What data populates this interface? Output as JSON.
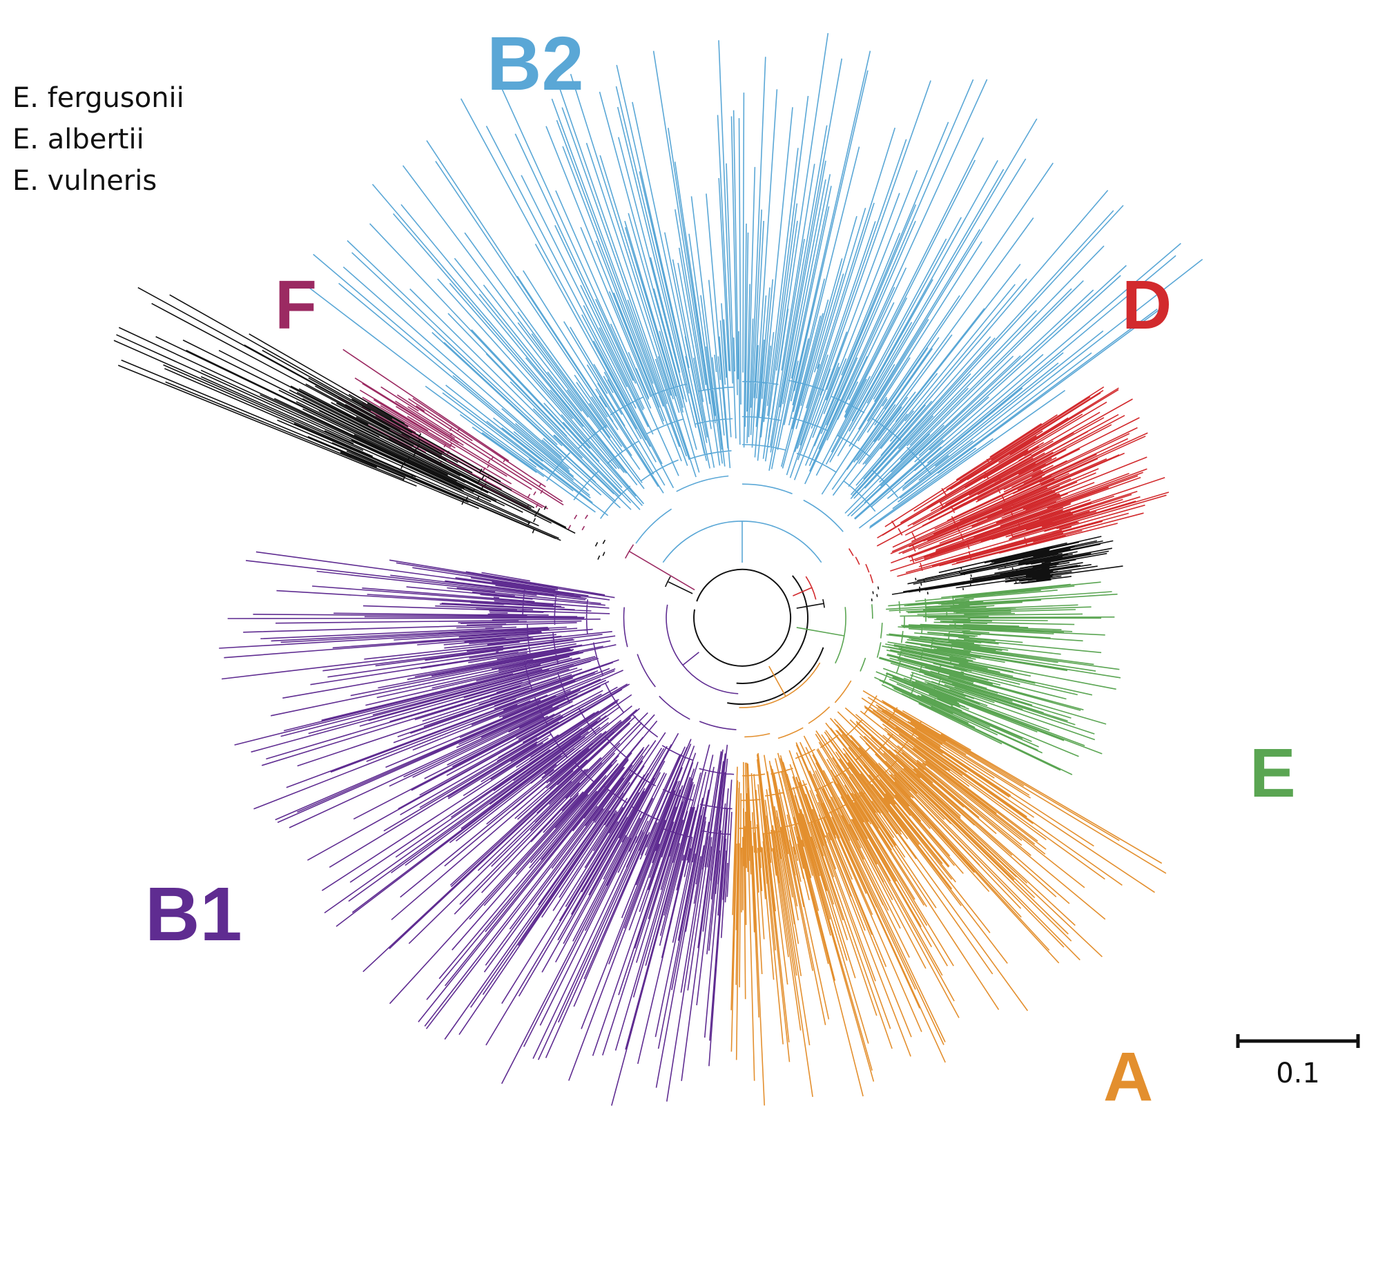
{
  "clades": [
    {
      "id": "B2",
      "label": "B2",
      "color": "#5aa7d6"
    },
    {
      "id": "F",
      "label": "F",
      "color": "#9b2a62"
    },
    {
      "id": "D",
      "label": "D",
      "color": "#d22a2d"
    },
    {
      "id": "E",
      "label": "E",
      "color": "#5aa552"
    },
    {
      "id": "A",
      "label": "A",
      "color": "#e38f2e"
    },
    {
      "id": "B1",
      "label": "B1",
      "color": "#5f2c91"
    }
  ],
  "outgroup": {
    "color": "#111111",
    "species": [
      "E. fergusonii",
      "E. albertii",
      "E. vulneris"
    ]
  },
  "scale_bar": {
    "value": "0.1"
  }
}
